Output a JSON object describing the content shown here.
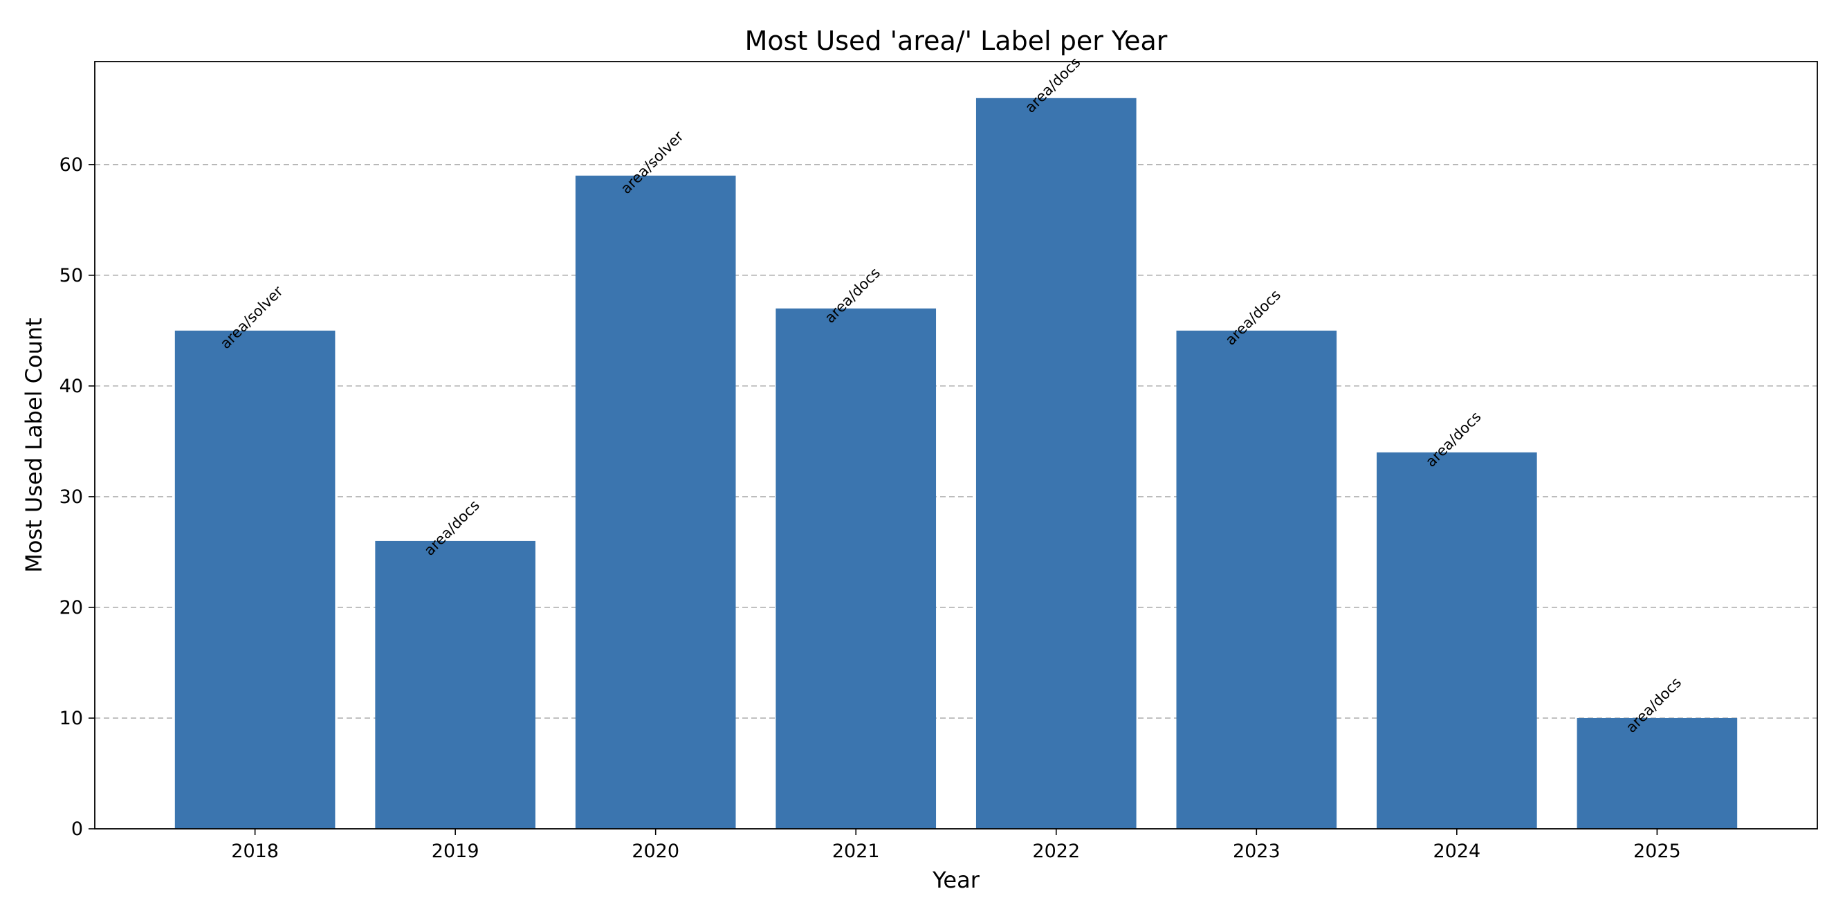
{
  "chart_data": {
    "type": "bar",
    "title": "Most Used 'area/' Label per Year",
    "xlabel": "Year",
    "ylabel": "Most Used Label Count",
    "categories": [
      "2018",
      "2019",
      "2020",
      "2021",
      "2022",
      "2023",
      "2024",
      "2025"
    ],
    "values": [
      45,
      26,
      59,
      47,
      66,
      45,
      34,
      10
    ],
    "bar_labels": [
      "area/solver",
      "area/docs",
      "area/solver",
      "area/docs",
      "area/docs",
      "area/docs",
      "area/docs",
      "area/docs"
    ],
    "ylim": [
      0,
      69.3
    ],
    "yticks": [
      0,
      10,
      20,
      30,
      40,
      50,
      60
    ],
    "grid": "y-dashed",
    "bar_color": "#3b75af"
  }
}
